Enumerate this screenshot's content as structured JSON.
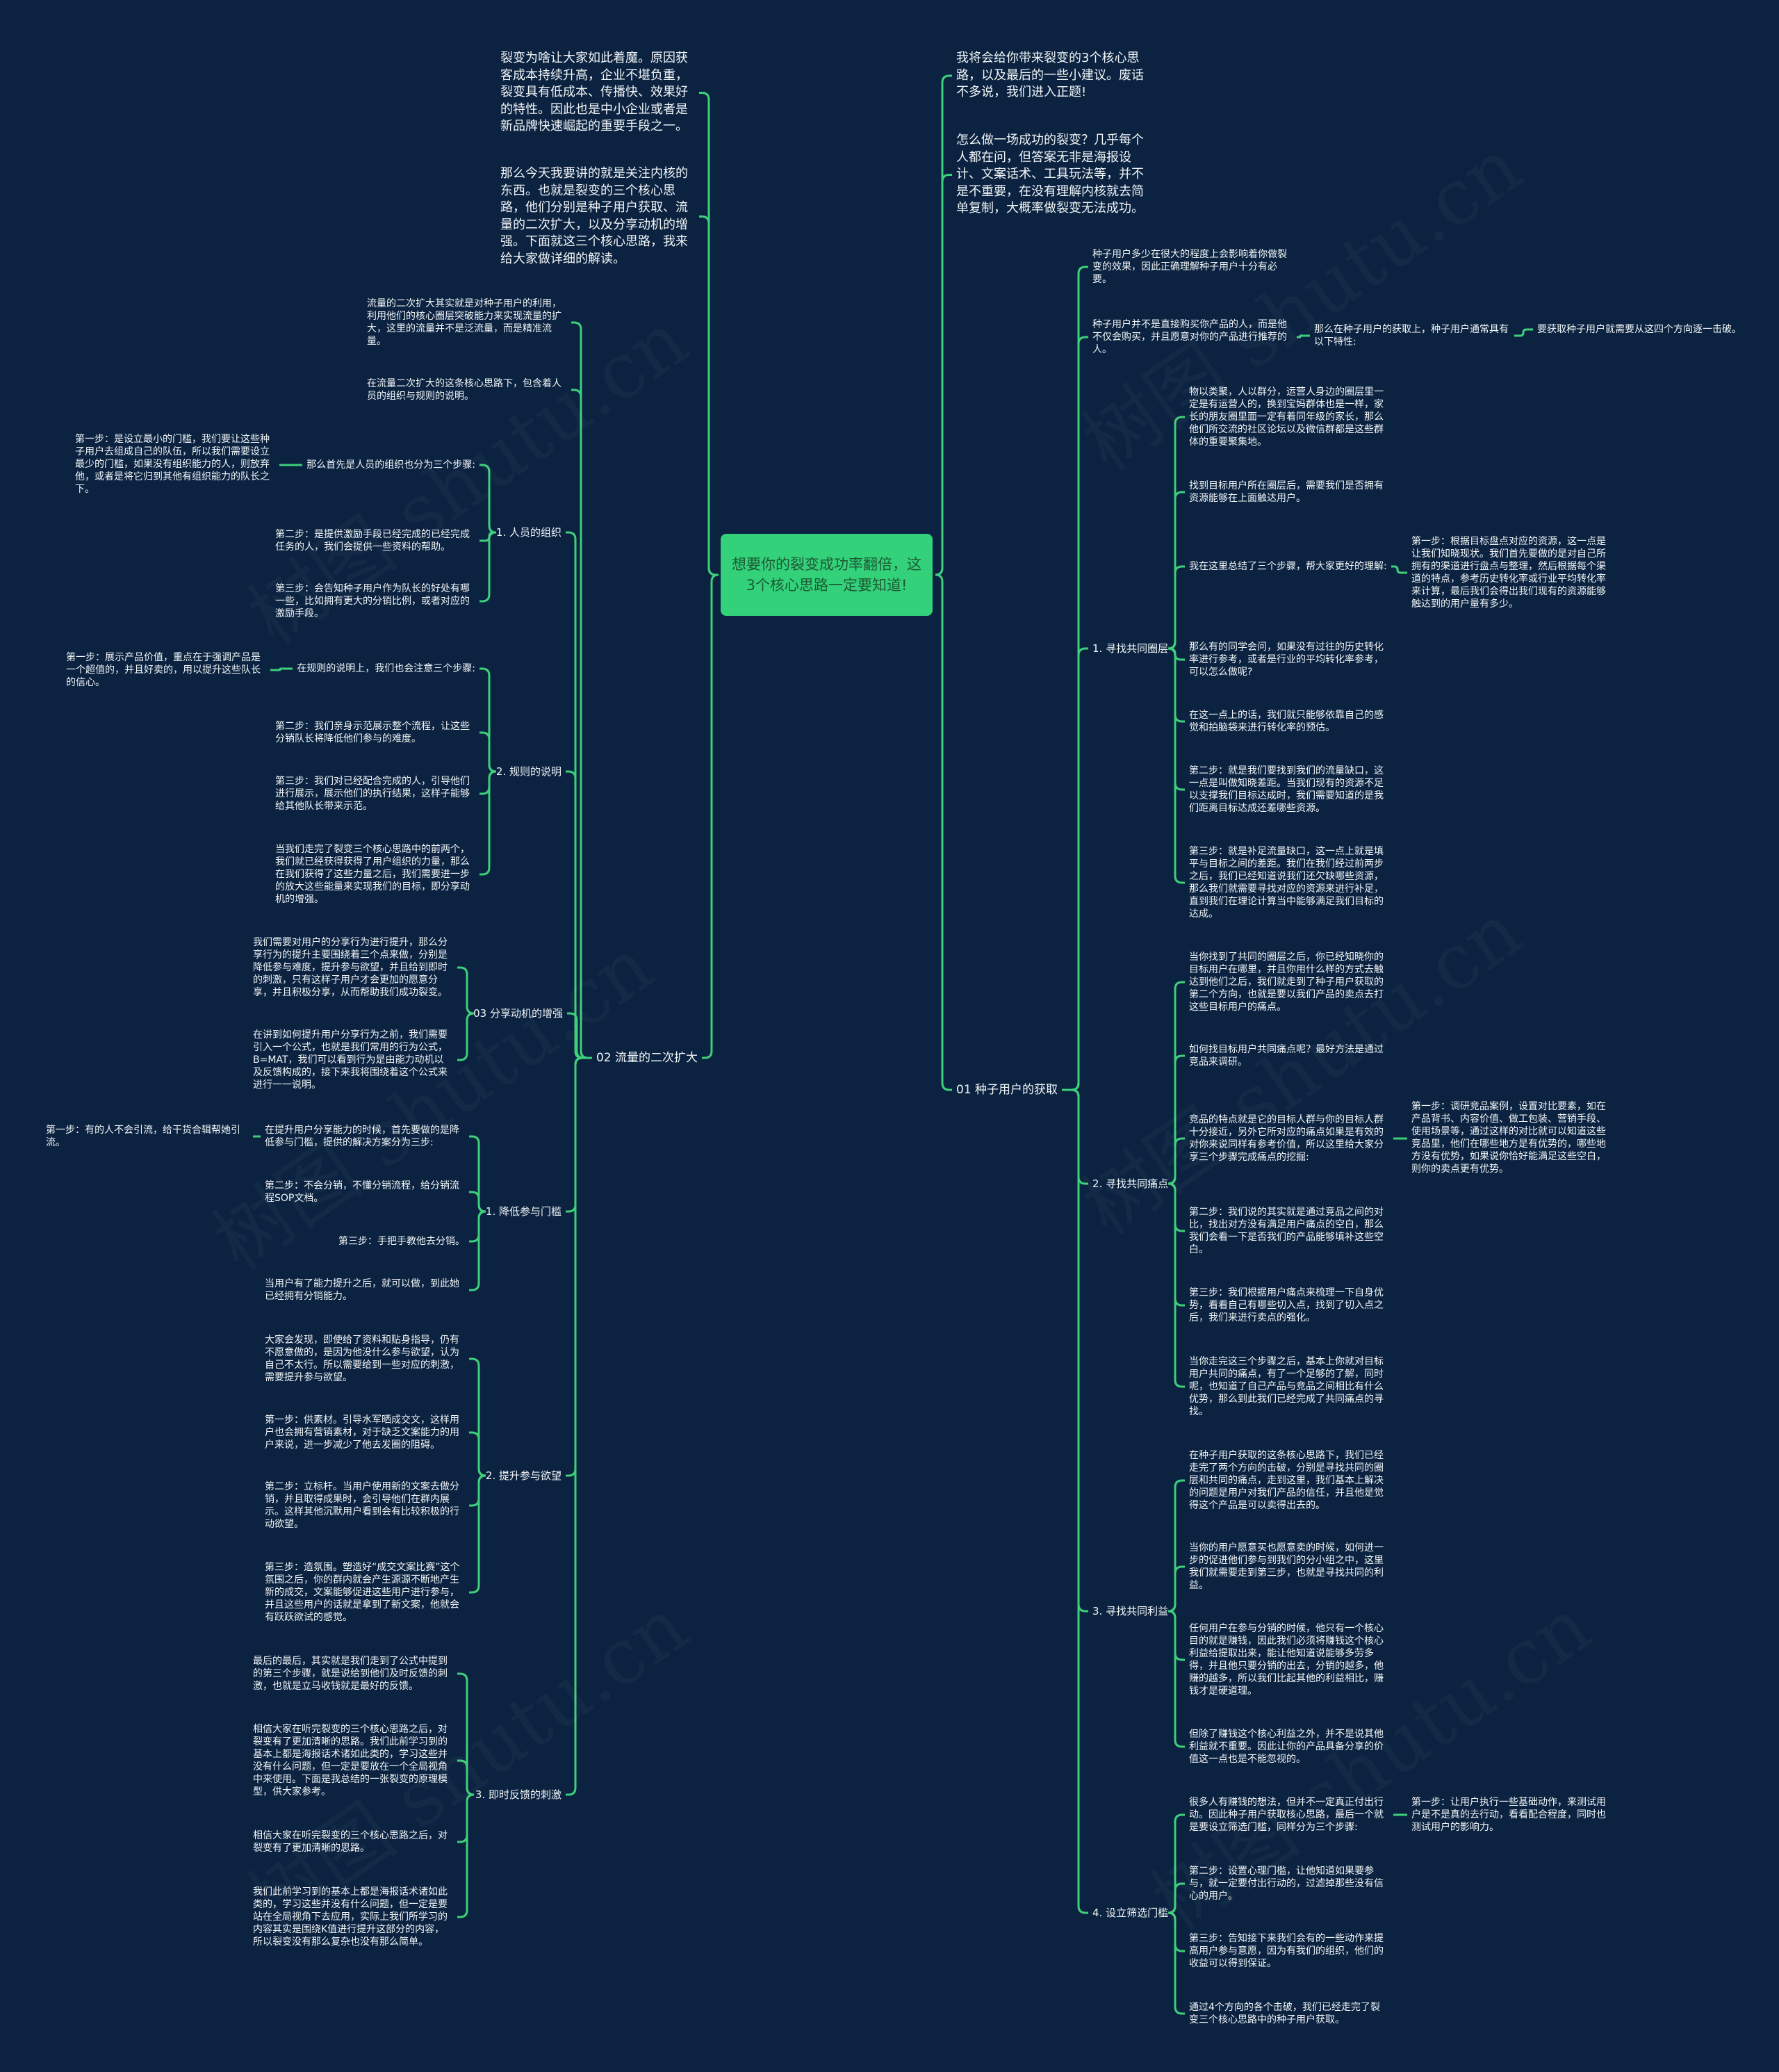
{
  "colors": {
    "background": "#0b2341",
    "line": "#3ecf7a",
    "center_fill": "#33d17a",
    "center_text": "#1d5a34",
    "text": "#f2f5f7"
  },
  "watermark": "树图 shutu.cn",
  "center": {
    "id": "center",
    "text": "想要你的裂变成功率翻倍，这3个核心思路一定要知道!"
  },
  "left": [
    {
      "id": "l1",
      "text": "裂变为啥让大家如此着魔。原因获客成本持续升高，企业不堪负重，裂变具有低成本、传播快、效果好的特性。因此也是中小企业或者是新品牌快速崛起的重要手段之一。"
    },
    {
      "id": "l2",
      "text": "那么今天我要讲的就是关注内核的东西。也就是裂变的三个核心思路，他们分别是种子用户获取、流量的二次扩大，以及分享动机的增强。下面就这三个核心思路，我来给大家做详细的解读。"
    },
    {
      "id": "l3",
      "text": "02 流量的二次扩大",
      "children": [
        {
          "id": "l3a",
          "text": "流量的二次扩大其实就是对种子用户的利用，利用他们的核心圈层突破能力来实现流量的扩大，这里的流量并不是泛流量，而是精准流量。"
        },
        {
          "id": "l3b",
          "text": "在流量二次扩大的这条核心思路下，包含着人员的组织与规则的说明。"
        },
        {
          "id": "l3c",
          "text": "1. 人员的组织",
          "children": [
            {
              "id": "l3c1",
              "text": "那么首先是人员的组织也分为三个步骤:",
              "children": [
                {
                  "id": "l3c1a",
                  "text": "第一步：是设立最小的门槛，我们要让这些种子用户去组成自己的队伍，所以我们需要设立最少的门槛，如果没有组织能力的人，则放弃他，或者是将它归到其他有组织能力的队长之下。"
                }
              ]
            },
            {
              "id": "l3c2",
              "text": "第二步：是提供激励手段已经完成的已经完成任务的人，我们会提供一些资料的帮助。"
            },
            {
              "id": "l3c3",
              "text": "第三步：会告知种子用户作为队长的好处有哪一些，比如拥有更大的分销比例，或者对应的激励手段。"
            }
          ]
        },
        {
          "id": "l3d",
          "text": "2. 规则的说明",
          "children": [
            {
              "id": "l3d1",
              "text": "在规则的说明上，我们也会注意三个步骤:",
              "children": [
                {
                  "id": "l3d1a",
                  "text": "第一步：展示产品价值，重点在于强调产品是一个超值的，并且好卖的，用以提升这些队长的信心。"
                }
              ]
            },
            {
              "id": "l3d2",
              "text": "第二步：我们亲身示范展示整个流程，让这些分销队长将降低他们参与的难度。"
            },
            {
              "id": "l3d3",
              "text": "第三步：我们对已经配合完成的人，引导他们进行展示，展示他们的执行结果，这样子能够给其他队长带来示范。"
            },
            {
              "id": "l3d4",
              "text": "当我们走完了裂变三个核心思路中的前两个，我们就已经获得获得了用户组织的力量，那么在我们获得了这些力量之后，我们需要进一步的放大这些能量来实现我们的目标，即分享动机的增强。"
            }
          ]
        },
        {
          "id": "l3e",
          "text": "03 分享动机的增强",
          "children": [
            {
              "id": "l3e1",
              "text": "我们需要对用户的分享行为进行提升，那么分享行为的提升主要围绕着三个点来做，分别是降低参与难度，提升参与欲望，并且给到即时的刺激，只有这样子用户才会更加的愿意分享，并且积极分享，从而帮助我们成功裂变。"
            },
            {
              "id": "l3e2",
              "text": "在讲到如何提升用户分享行为之前，我们需要引入一个公式，也就是我们常用的行为公式，B=MAT，我们可以看到行为是由能力动机以及反馈构成的，接下来我将围绕着这个公式来进行一一说明。"
            }
          ]
        },
        {
          "id": "l3f",
          "text": "1. 降低参与门槛",
          "children": [
            {
              "id": "l3f1",
              "text": "在提升用户分享能力的时候，首先要做的是降低参与门槛，提供的解决方案分为三步:",
              "children": [
                {
                  "id": "l3f1a",
                  "text": "第一步：有的人不会引流，给干货合辑帮她引流。"
                }
              ]
            },
            {
              "id": "l3f2",
              "text": "第二步：不会分销，不懂分销流程，给分销流程SOP文档。"
            },
            {
              "id": "l3f3",
              "text": "第三步：手把手教他去分销。"
            },
            {
              "id": "l3f4",
              "text": "当用户有了能力提升之后，就可以做，到此她已经拥有分销能力。"
            }
          ]
        },
        {
          "id": "l3g",
          "text": "2. 提升参与欲望",
          "children": [
            {
              "id": "l3g1",
              "text": "大家会发现，即使给了资料和贴身指导，仍有不愿意做的，是因为他没什么参与欲望，认为自己不太行。所以需要给到一些对应的刺激，需要提升参与欲望。"
            },
            {
              "id": "l3g2",
              "text": "第一步：供素材。引导水军晒成交文，这样用户也会拥有营销素材，对于缺乏文案能力的用户来说，进一步减少了他去发圈的阻碍。"
            },
            {
              "id": "l3g3",
              "text": "第二步：立标杆。当用户使用新的文案去做分销，并且取得成果时，会引导他们在群内展示。这样其他沉默用户看到会有比较积极的行动欲望。"
            },
            {
              "id": "l3g4",
              "text": "第三步：造氛围。塑造好“成交文案比赛”这个氛围之后，你的群内就会产生源源不断地产生新的成交，文案能够促进这些用户进行参与，并且这些用户的话就是拿到了新文案，他就会有跃跃欲试的感觉。"
            }
          ]
        },
        {
          "id": "l3h",
          "text": "3. 即时反馈的刺激",
          "children": [
            {
              "id": "l3h1",
              "text": "最后的最后，其实就是我们走到了公式中提到的第三个步骤，就是说给到他们及时反馈的刺激，也就是立马收钱就是最好的反馈。"
            },
            {
              "id": "l3h2",
              "text": "相信大家在听完裂变的三个核心思路之后，对裂变有了更加清晰的思路。我们此前学习到的基本上都是海报话术诸如此类的，学习这些并没有什么问题，但一定是要放在一个全局视角中来使用。下面是我总结的一张裂变的原理模型，供大家参考。"
            },
            {
              "id": "l3h3",
              "text": "相信大家在听完裂变的三个核心思路之后，对裂变有了更加清晰的思路。"
            },
            {
              "id": "l3h4",
              "text": "我们此前学习到的基本上都是海报话术诸如此类的，学习这些并没有什么问题，但一定是要站在全局视角下去应用，实际上我们所学习的内容其实是围绕K值进行提升这部分的内容，所以裂变没有那么复杂也没有那么简单。"
            }
          ]
        }
      ]
    }
  ],
  "right": [
    {
      "id": "r1",
      "text": "我将会给你带来裂变的3个核心思路，以及最后的一些小建议。废话不多说，我们进入正题!"
    },
    {
      "id": "r2",
      "text": "怎么做一场成功的裂变？几乎每个人都在问，但答案无非是海报设计、文案话术、工具玩法等，并不是不重要，在没有理解内核就去简单复制，大概率做裂变无法成功。"
    },
    {
      "id": "r3",
      "text": "01 种子用户的获取",
      "children": [
        {
          "id": "r3a",
          "text": "种子用户多少在很大的程度上会影响着你做裂变的效果，因此正确理解种子用户十分有必要。"
        },
        {
          "id": "r3b",
          "text": "种子用户并不是直接购买你产品的人，而是他不仅会购买，并且愿意对你的产品进行推荐的人。",
          "children": [
            {
              "id": "r3b1",
              "text": "那么在种子用户的获取上，种子用户通常具有以下特性:",
              "children": [
                {
                  "id": "r3b1a",
                  "text": "要获取种子用户就需要从这四个方向逐一击破。"
                }
              ]
            }
          ]
        },
        {
          "id": "r3c",
          "text": "1. 寻找共同圈层",
          "children": [
            {
              "id": "r3c1",
              "text": "物以类聚，人以群分，运营人身边的圈层里一定是有运营人的，换到宝妈群体也是一样，家长的朋友圈里面一定有着同年级的家长，那么他们所交流的社区论坛以及微信群都是这些群体的重要聚集地。"
            },
            {
              "id": "r3c2",
              "text": "找到目标用户所在圈层后，需要我们是否拥有资源能够在上面触达用户。"
            },
            {
              "id": "r3c3",
              "text": "我在这里总结了三个步骤，帮大家更好的理解:",
              "children": [
                {
                  "id": "r3c3a",
                  "text": "第一步：根据目标盘点对应的资源，这一点是让我们知晓现状。我们首先要做的是对自己所拥有的渠道进行盘点与整理，然后根据每个渠道的特点，参考历史转化率或行业平均转化率来计算，最后我们会得出我们现有的资源能够触达到的用户量有多少。"
                }
              ]
            },
            {
              "id": "r3c4",
              "text": "那么有的同学会问，如果没有过往的历史转化率进行参考，或者是行业的平均转化率参考，可以怎么做呢?"
            },
            {
              "id": "r3c5",
              "text": "在这一点上的话，我们就只能够依靠自己的感觉和拍脑袋来进行转化率的预估。"
            },
            {
              "id": "r3c6",
              "text": "第二步：就是我们要找到我们的流量缺口，这一点是叫做知晓差距。当我们现有的资源不足以支撑我们目标达成时，我们需要知道的是我们距离目标达成还差哪些资源。"
            },
            {
              "id": "r3c7",
              "text": "第三步：就是补足流量缺口，这一点上就是填平与目标之间的差距。我们在我们经过前两步之后，我们已经知道说我们还欠缺哪些资源，那么我们就需要寻找对应的资源来进行补足，直到我们在理论计算当中能够满足我们目标的达成。"
            }
          ]
        },
        {
          "id": "r3d",
          "text": "2. 寻找共同痛点",
          "children": [
            {
              "id": "r3d1",
              "text": "当你找到了共同的圈层之后，你已经知晓你的目标用户在哪里，并且你用什么样的方式去触达到他们之后，我们就走到了种子用户获取的第二个方向，也就是要以我们产品的卖点去打这些目标用户的痛点。"
            },
            {
              "id": "r3d2",
              "text": "如何找目标用户共同痛点呢？最好方法是通过竞品来调研。"
            },
            {
              "id": "r3d3",
              "text": "竞品的特点就是它的目标人群与你的目标人群十分接近，另外它所对应的痛点如果是有效的对你来说同样有参考价值，所以这里给大家分享三个步骤完成痛点的挖掘:",
              "children": [
                {
                  "id": "r3d3a",
                  "text": "第一步：调研竞品案例，设置对比要素，如在产品背书、内容价值、做工包装、营销手段、使用场景等，通过这样的对比就可以知道这些竞品里，他们在哪些地方是有优势的，哪些地方没有优势，如果说你恰好能满足这些空白，则你的卖点更有优势。"
                }
              ]
            },
            {
              "id": "r3d4",
              "text": "第二步：我们说的其实就是通过竞品之间的对比，找出对方没有满足用户痛点的空白，那么我们会看一下是否我们的产品能够填补这些空白。"
            },
            {
              "id": "r3d5",
              "text": "第三步：我们根据用户痛点来梳理一下自身优势，看看自己有哪些切入点，找到了切入点之后，我们来进行卖点的强化。"
            },
            {
              "id": "r3d6",
              "text": "当你走完这三个步骤之后，基本上你就对目标用户共同的痛点，有了一个足够的了解，同时呢，也知道了自己产品与竞品之间相比有什么优势，那么到此我们已经完成了共同痛点的寻找。"
            }
          ]
        },
        {
          "id": "r3e",
          "text": "3. 寻找共同利益",
          "children": [
            {
              "id": "r3e1",
              "text": "在种子用户获取的这条核心思路下，我们已经走完了两个方向的击破，分别是寻找共同的圈层和共同的痛点，走到这里，我们基本上解决的问题是用户对我们产品的信任，并且他是觉得这个产品是可以卖得出去的。"
            },
            {
              "id": "r3e2",
              "text": "当你的用户愿意买也愿意卖的时候，如何进一步的促进他们参与到我们的分小组之中，这里我们就需要走到第三步，也就是寻找共同的利益。"
            },
            {
              "id": "r3e3",
              "text": "任何用户在参与分销的时候，他只有一个核心目的就是赚钱，因此我们必须将赚钱这个核心利益给提取出来，能让他知道说能够多劳多得，并且他只要分销的出去，分销的越多，他赚的越多，所以我们比起其他的利益相比，赚钱才是硬道理。"
            },
            {
              "id": "r3e4",
              "text": "但除了赚钱这个核心利益之外，并不是说其他利益就不重要。因此让你的产品具备分享的价值这一点也是不能忽视的。"
            }
          ]
        },
        {
          "id": "r3f",
          "text": "4. 设立筛选门槛",
          "children": [
            {
              "id": "r3f1",
              "text": "很多人有赚钱的想法，但并不一定真正付出行动。因此种子用户获取核心思路，最后一个就是要设立筛选门槛，同样分为三个步骤:",
              "children": [
                {
                  "id": "r3f1a",
                  "text": "第一步：让用户执行一些基础动作，来测试用户是不是真的去行动，看看配合程度，同时也测试用户的影响力。"
                }
              ]
            },
            {
              "id": "r3f2",
              "text": "第二步：设置心理门槛，让他知道如果要参与，就一定要付出行动的，过滤掉那些没有信心的用户。"
            },
            {
              "id": "r3f3",
              "text": "第三步：告知接下来我们会有的一些动作来提高用户参与意愿，因为有我们的组织，他们的收益可以得到保证。"
            },
            {
              "id": "r3f4",
              "text": "通过4个方向的各个击破，我们已经走完了裂变三个核心思路中的种子用户获取。"
            }
          ]
        }
      ]
    }
  ]
}
